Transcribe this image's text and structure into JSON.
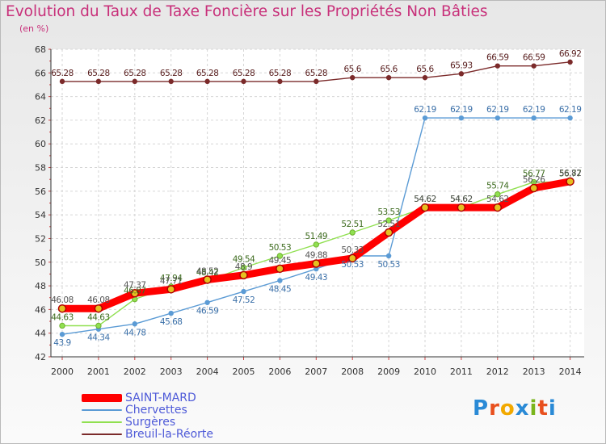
{
  "header": {
    "title": "Evolution du Taux de Taxe Foncière sur les Propriétés Non Bâties",
    "unit": "(en %)"
  },
  "logo": {
    "text": "Proxiti",
    "letters": [
      "P",
      "r",
      "o",
      "x",
      "i",
      "t",
      "i"
    ],
    "colors": [
      "#2a8ad6",
      "#e8501e",
      "#f2a900",
      "#2a8ad6",
      "#7ab51d",
      "#e8501e",
      "#2a8ad6"
    ]
  },
  "chart_data": {
    "type": "line",
    "title": "Evolution du Taux de Taxe Foncière sur les Propriétés Non Bâties",
    "ylabel": "(en %)",
    "xlabel": "",
    "x": [
      "2000",
      "2001",
      "2002",
      "2003",
      "2004",
      "2005",
      "2006",
      "2007",
      "2008",
      "2009",
      "2010",
      "2011",
      "2012",
      "2013",
      "2014"
    ],
    "ylim": [
      42,
      68
    ],
    "yticks": [
      42,
      44,
      46,
      48,
      50,
      52,
      54,
      56,
      58,
      60,
      62,
      64,
      66,
      68
    ],
    "grid": true,
    "legend_position": "bottom-left",
    "series": [
      {
        "name": "SAINT-MARD",
        "color": "#ff0000",
        "values": [
          46.08,
          46.08,
          47.37,
          47.71,
          48.52,
          48.9,
          49.45,
          49.88,
          50.33,
          52.51,
          54.62,
          54.62,
          54.62,
          56.26,
          56.82
        ],
        "labels": [
          "46.08",
          "46.08",
          "47.37",
          "47.71",
          "48.52",
          "48.9",
          "49.45",
          "49.88",
          "50.33",
          "52.51",
          "54.62",
          "54.62",
          "54.62",
          "56.26",
          "56.82"
        ]
      },
      {
        "name": "Chervettes",
        "color": "#5b9bd5",
        "values": [
          43.9,
          44.34,
          44.78,
          45.68,
          46.59,
          47.52,
          48.45,
          49.43,
          50.53,
          50.53,
          62.19,
          62.19,
          62.19,
          62.19,
          62.19
        ],
        "labels": [
          "43.9",
          "44.34",
          "44.78",
          "45.68",
          "46.59",
          "47.52",
          "48.45",
          "49.43",
          "50.53",
          "50.53",
          "62.19",
          "62.19",
          "62.19",
          "62.19",
          "62.19"
        ]
      },
      {
        "name": "Surgères",
        "color": "#90e050",
        "values": [
          44.63,
          44.63,
          46.87,
          47.94,
          48.42,
          49.54,
          50.53,
          51.49,
          52.51,
          53.53,
          54.62,
          54.62,
          55.74,
          56.77,
          56.77
        ],
        "labels": [
          "44.63",
          "44.63",
          "46.87",
          "47.94",
          "48.42",
          "49.54",
          "50.53",
          "51.49",
          "52.51",
          "53.53",
          "54.62",
          "54.62",
          "55.74",
          "56.77",
          "56.77"
        ]
      },
      {
        "name": "Breuil-la-Réorte",
        "color": "#7b2a2a",
        "values": [
          65.28,
          65.28,
          65.28,
          65.28,
          65.28,
          65.28,
          65.28,
          65.28,
          65.6,
          65.6,
          65.6,
          65.93,
          66.59,
          66.59,
          66.92
        ],
        "labels": [
          "65.28",
          "65.28",
          "65.28",
          "65.28",
          "65.28",
          "65.28",
          "65.28",
          "65.28",
          "65.6",
          "65.6",
          "65.6",
          "65.93",
          "66.59",
          "66.59",
          "66.92"
        ]
      }
    ]
  }
}
